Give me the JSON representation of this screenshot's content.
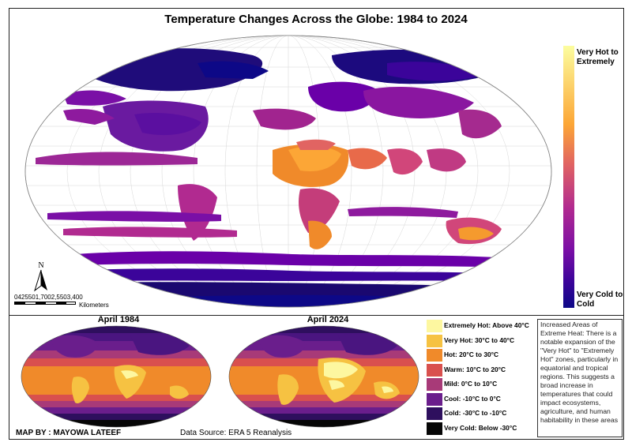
{
  "title": "Temperature  Changes Across the Globe: 1984 to 2024",
  "gradient_legend": {
    "top_label": "Very Hot to Extremely",
    "bottom_label": "Very Cold to Cold",
    "colors": [
      "#fcfd9f",
      "#fca636",
      "#e16462",
      "#b12a90",
      "#7a0fa6",
      "#3b049a",
      "#0d0887"
    ]
  },
  "north_arrow": {
    "label": "N",
    "icon": "north-arrow-icon"
  },
  "scale_bar": {
    "ticks": "0425501,7002,5503,400",
    "unit": "Kilometers"
  },
  "insets": [
    {
      "title": "April 1984"
    },
    {
      "title": "April 2024"
    }
  ],
  "legend": [
    {
      "label": "Extremely Hot: Above 40°C",
      "color": "#fdf7a0"
    },
    {
      "label": "Very Hot: 30°C to 40°C",
      "color": "#f6c242"
    },
    {
      "label": "Hot: 20°C to 30°C",
      "color": "#f08a2a"
    },
    {
      "label": "Warm: 10°C to 20°C",
      "color": "#d9504e"
    },
    {
      "label": "Mild: 0°C to 10°C",
      "color": "#a83a78"
    },
    {
      "label": "Cool: -10°C to 0°C",
      "color": "#6a1e8c"
    },
    {
      "label": "Cold: -30°C to -10°C",
      "color": "#2e0f5e"
    },
    {
      "label": "Very Cold: Below -30°C",
      "color": "#060606"
    }
  ],
  "note": "Increased Areas of Extreme Heat: There is a notable expansion of the \"Very Hot\" to \"Extremely Hot\" zones, particularly in equatorial and tropical regions. This suggests a broad increase in temperatures that could impact ecosystems, agriculture, and human habitability in these areas",
  "author": "MAP BY : MAYOWA LATEEF",
  "source": "Data Source: ERA 5 Reanalysis"
}
